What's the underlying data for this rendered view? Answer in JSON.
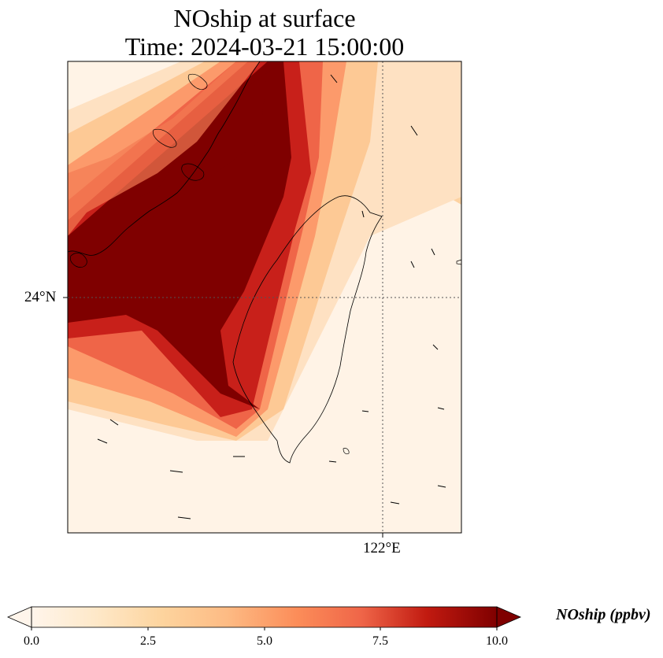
{
  "title": {
    "line1": "NOship at surface",
    "line2": "Time: 2024-03-21 15:00:00"
  },
  "map": {
    "lat_tick_label": "24°N",
    "lon_tick_label": "122°E",
    "field_colors": [
      "#fff5eb",
      "#fee6ce",
      "#fdd0a2",
      "#fdae6b",
      "#f16913",
      "#d94801",
      "#a50f15",
      "#7f0000"
    ]
  },
  "colorbar": {
    "title": "NOship (ppbv)",
    "ticks": [
      "0.0",
      "2.5",
      "5.0",
      "7.5",
      "10.0"
    ],
    "colors": [
      "#fff5eb",
      "#fdd49e",
      "#fdbb84",
      "#fc8d59",
      "#ef6548",
      "#d7301f",
      "#b30000",
      "#7f0000"
    ],
    "extend": "both"
  }
}
